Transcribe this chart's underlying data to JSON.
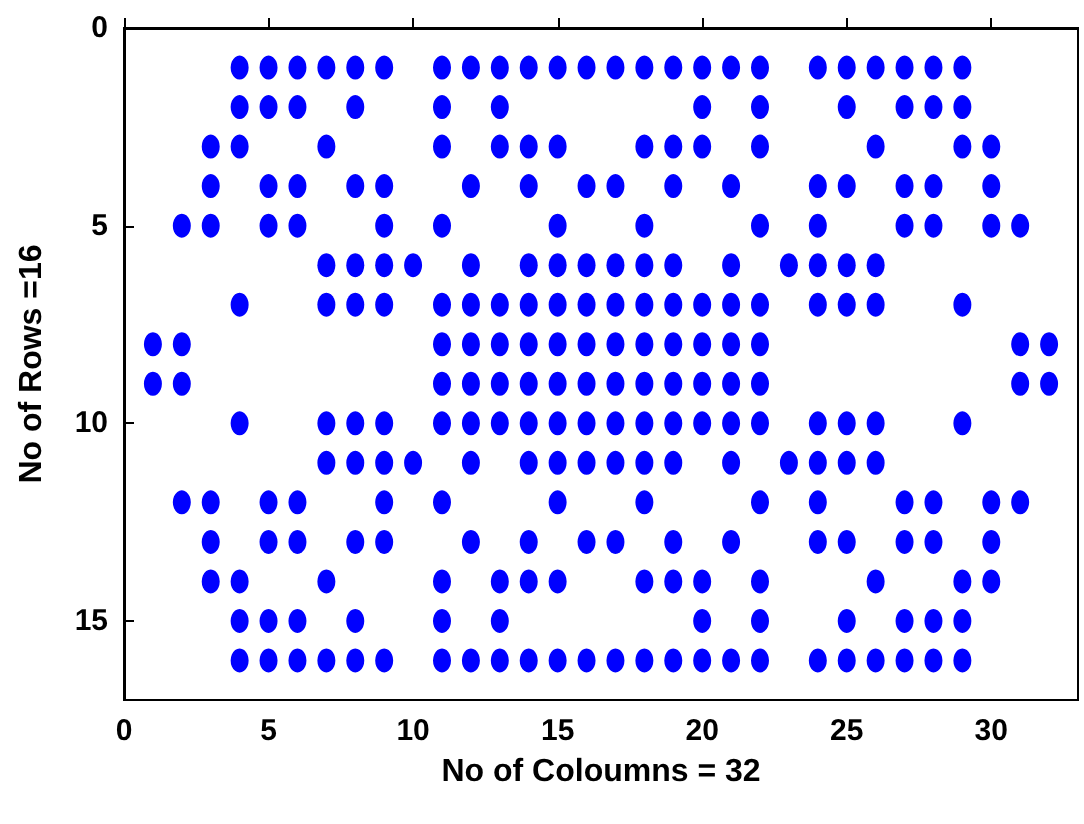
{
  "chart_data": {
    "type": "scatter",
    "xlabel": "No of Coloumns = 32",
    "ylabel": "No of Rows =16",
    "xlim": [
      0,
      33
    ],
    "xticks": [
      0,
      5,
      10,
      15,
      20,
      25,
      30
    ],
    "ylim": [
      17,
      0
    ],
    "yticks": [
      0,
      5,
      10,
      15
    ],
    "grid": false,
    "marker": "circle",
    "series": [
      {
        "color": "#0000ff",
        "x": [
          4,
          5,
          6,
          7,
          8,
          9,
          11,
          12,
          13,
          14,
          15,
          16,
          17,
          18,
          19,
          20,
          21,
          22,
          24,
          25,
          26,
          27,
          28,
          29
        ],
        "values": [
          1,
          1,
          1,
          1,
          1,
          1,
          1,
          1,
          1,
          1,
          1,
          1,
          1,
          1,
          1,
          1,
          1,
          1,
          1,
          1,
          1,
          1,
          1,
          1
        ]
      },
      {
        "color": "#0000ff",
        "x": [
          4,
          5,
          6,
          8,
          11,
          13,
          20,
          22,
          25,
          27,
          28,
          29
        ],
        "values": [
          2,
          2,
          2,
          2,
          2,
          2,
          2,
          2,
          2,
          2,
          2,
          2
        ]
      },
      {
        "color": "#0000ff",
        "x": [
          3,
          4,
          7,
          11,
          13,
          14,
          15,
          18,
          19,
          20,
          22,
          26,
          29,
          30
        ],
        "values": [
          3,
          3,
          3,
          3,
          3,
          3,
          3,
          3,
          3,
          3,
          3,
          3,
          3,
          3
        ]
      },
      {
        "color": "#0000ff",
        "x": [
          3,
          5,
          6,
          8,
          9,
          12,
          14,
          16,
          17,
          19,
          21,
          24,
          25,
          27,
          28,
          30
        ],
        "values": [
          4,
          4,
          4,
          4,
          4,
          4,
          4,
          4,
          4,
          4,
          4,
          4,
          4,
          4,
          4,
          4
        ]
      },
      {
        "color": "#0000ff",
        "x": [
          2,
          3,
          5,
          6,
          9,
          11,
          15,
          18,
          22,
          24,
          27,
          28,
          30,
          31
        ],
        "values": [
          5,
          5,
          5,
          5,
          5,
          5,
          5,
          5,
          5,
          5,
          5,
          5,
          5,
          5
        ]
      },
      {
        "color": "#0000ff",
        "x": [
          7,
          8,
          9,
          10,
          12,
          14,
          15,
          16,
          17,
          18,
          19,
          21,
          23,
          24,
          25,
          26
        ],
        "values": [
          6,
          6,
          6,
          6,
          6,
          6,
          6,
          6,
          6,
          6,
          6,
          6,
          6,
          6,
          6,
          6
        ]
      },
      {
        "color": "#0000ff",
        "x": [
          4,
          7,
          8,
          9,
          11,
          12,
          13,
          14,
          15,
          16,
          17,
          18,
          19,
          20,
          21,
          22,
          24,
          25,
          26,
          29
        ],
        "values": [
          7,
          7,
          7,
          7,
          7,
          7,
          7,
          7,
          7,
          7,
          7,
          7,
          7,
          7,
          7,
          7,
          7,
          7,
          7,
          7
        ]
      },
      {
        "color": "#0000ff",
        "x": [
          1,
          2,
          11,
          12,
          13,
          14,
          15,
          16,
          17,
          18,
          19,
          20,
          21,
          22,
          31,
          32
        ],
        "values": [
          8,
          8,
          8,
          8,
          8,
          8,
          8,
          8,
          8,
          8,
          8,
          8,
          8,
          8,
          8,
          8
        ]
      },
      {
        "color": "#0000ff",
        "x": [
          1,
          2,
          11,
          12,
          13,
          14,
          15,
          16,
          17,
          18,
          19,
          20,
          21,
          22,
          31,
          32
        ],
        "values": [
          9,
          9,
          9,
          9,
          9,
          9,
          9,
          9,
          9,
          9,
          9,
          9,
          9,
          9,
          9,
          9
        ]
      },
      {
        "color": "#0000ff",
        "x": [
          4,
          7,
          8,
          9,
          11,
          12,
          13,
          14,
          15,
          16,
          17,
          18,
          19,
          20,
          21,
          22,
          24,
          25,
          26,
          29
        ],
        "values": [
          10,
          10,
          10,
          10,
          10,
          10,
          10,
          10,
          10,
          10,
          10,
          10,
          10,
          10,
          10,
          10,
          10,
          10,
          10,
          10
        ]
      },
      {
        "color": "#0000ff",
        "x": [
          7,
          8,
          9,
          10,
          12,
          14,
          15,
          16,
          17,
          18,
          19,
          21,
          23,
          24,
          25,
          26
        ],
        "values": [
          11,
          11,
          11,
          11,
          11,
          11,
          11,
          11,
          11,
          11,
          11,
          11,
          11,
          11,
          11,
          11
        ]
      },
      {
        "color": "#0000ff",
        "x": [
          2,
          3,
          5,
          6,
          9,
          11,
          15,
          18,
          22,
          24,
          27,
          28,
          30,
          31
        ],
        "values": [
          12,
          12,
          12,
          12,
          12,
          12,
          12,
          12,
          12,
          12,
          12,
          12,
          12,
          12
        ]
      },
      {
        "color": "#0000ff",
        "x": [
          3,
          5,
          6,
          8,
          9,
          12,
          14,
          16,
          17,
          19,
          21,
          24,
          25,
          27,
          28,
          30
        ],
        "values": [
          13,
          13,
          13,
          13,
          13,
          13,
          13,
          13,
          13,
          13,
          13,
          13,
          13,
          13,
          13,
          13
        ]
      },
      {
        "color": "#0000ff",
        "x": [
          3,
          4,
          7,
          11,
          13,
          14,
          15,
          18,
          19,
          20,
          22,
          26,
          29,
          30
        ],
        "values": [
          14,
          14,
          14,
          14,
          14,
          14,
          14,
          14,
          14,
          14,
          14,
          14,
          14,
          14
        ]
      },
      {
        "color": "#0000ff",
        "x": [
          4,
          5,
          6,
          8,
          11,
          13,
          20,
          22,
          25,
          27,
          28,
          29
        ],
        "values": [
          15,
          15,
          15,
          15,
          15,
          15,
          15,
          15,
          15,
          15,
          15,
          15
        ]
      },
      {
        "color": "#0000ff",
        "x": [
          4,
          5,
          6,
          7,
          8,
          9,
          11,
          12,
          13,
          14,
          15,
          16,
          17,
          18,
          19,
          20,
          21,
          22,
          24,
          25,
          26,
          27,
          28,
          29
        ],
        "values": [
          16,
          16,
          16,
          16,
          16,
          16,
          16,
          16,
          16,
          16,
          16,
          16,
          16,
          16,
          16,
          16,
          16,
          16,
          16,
          16,
          16,
          16,
          16,
          16
        ]
      }
    ]
  }
}
